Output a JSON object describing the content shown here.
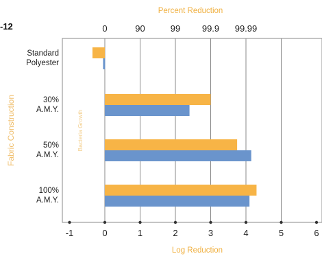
{
  "figure_label": "-12",
  "chart_data": {
    "type": "bar",
    "orientation": "horizontal",
    "top_axis": {
      "title": "Percent Reduction",
      "ticks": [
        {
          "log": 0,
          "label": "0"
        },
        {
          "log": 1,
          "label": "90"
        },
        {
          "log": 2,
          "label": "99"
        },
        {
          "log": 3,
          "label": "99.9"
        },
        {
          "log": 4,
          "label": "99.99"
        }
      ]
    },
    "xlabel": "Log Reduction",
    "ylabel": "Fabric Construction",
    "ylabel_secondary": "Bacteria Growth",
    "xlim": [
      -1,
      6
    ],
    "xticks": [
      -1,
      0,
      1,
      2,
      3,
      4,
      5,
      6
    ],
    "grid": true,
    "categories": [
      [
        "Standard",
        "Polyester"
      ],
      [
        "30%",
        "A.M.Y."
      ],
      [
        "50%",
        "A.M.Y."
      ],
      [
        "100%",
        "A.M.Y."
      ]
    ],
    "series": [
      {
        "color": "#f7b446",
        "values": [
          -0.35,
          3.0,
          3.75,
          4.3
        ]
      },
      {
        "color": "#6a94cc",
        "values": [
          -0.05,
          2.4,
          4.15,
          4.1
        ]
      }
    ]
  }
}
